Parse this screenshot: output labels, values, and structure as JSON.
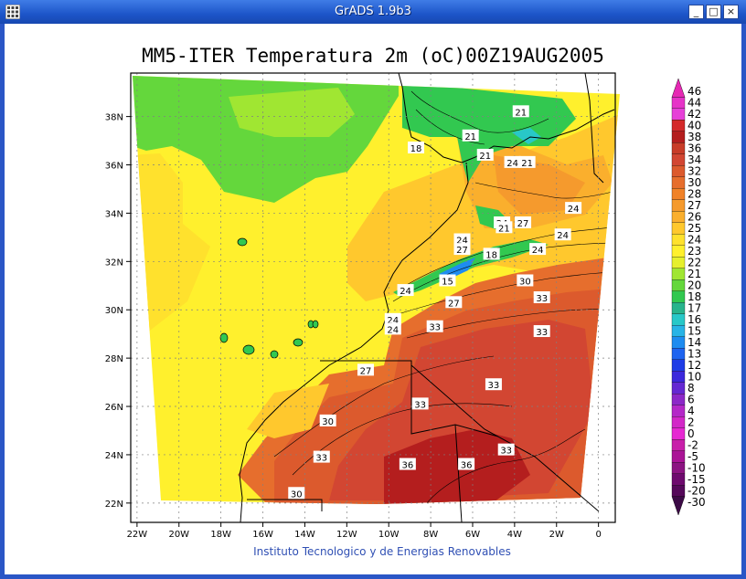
{
  "window": {
    "title": "GrADS 1.9b3",
    "minimize_label": "_",
    "maximize_label": "□",
    "close_label": "×"
  },
  "colors": {
    "titlebar": "#1d55c9",
    "accent": "#ffffff"
  },
  "plot": {
    "title": "MM5-ITER Temperatura 2m (oC)00Z19AUG2005",
    "credit": "Instituto Tecnologico y de Energias Renovables"
  },
  "chart_data": {
    "type": "heatmap",
    "title": "MM5-ITER Temperatura 2m (oC)00Z19AUG2005",
    "x_ticks": [
      "22W",
      "20W",
      "18W",
      "16W",
      "14W",
      "12W",
      "10W",
      "8W",
      "6W",
      "4W",
      "2W",
      "0"
    ],
    "x_values": [
      -22,
      -20,
      -18,
      -16,
      -14,
      -12,
      -10,
      -8,
      -6,
      -4,
      -2,
      0
    ],
    "y_ticks": [
      "22N",
      "24N",
      "26N",
      "28N",
      "30N",
      "32N",
      "34N",
      "36N",
      "38N"
    ],
    "y_values": [
      22,
      24,
      26,
      28,
      30,
      32,
      34,
      36,
      38
    ],
    "xlim": [
      -22.3,
      0.8
    ],
    "ylim": [
      21.2,
      39.8
    ],
    "grid": true,
    "colorbar_labels": [
      "46",
      "44",
      "42",
      "40",
      "38",
      "36",
      "34",
      "32",
      "30",
      "28",
      "27",
      "26",
      "25",
      "24",
      "23",
      "22",
      "21",
      "20",
      "18",
      "17",
      "16",
      "15",
      "14",
      "13",
      "12",
      "10",
      "8",
      "6",
      "4",
      "2",
      "0",
      "-2",
      "-5",
      "-10",
      "-15",
      "-20",
      "-30"
    ],
    "colorbar_colors": [
      "#e628b4",
      "#e633c8",
      "#e640d8",
      "#d42a2a",
      "#b41e1e",
      "#c83c28",
      "#d24632",
      "#dc5a2d",
      "#e66e2d",
      "#f08228",
      "#f59a2d",
      "#faaf2d",
      "#ffc82d",
      "#ffe12d",
      "#fff02d",
      "#e6f02d",
      "#a0e632",
      "#64d73c",
      "#32c850",
      "#28b48c",
      "#28c8c8",
      "#28b4e6",
      "#1e8cf0",
      "#1e64f0",
      "#1e3ce6",
      "#3c28dc",
      "#6428d2",
      "#8c28c8",
      "#b428c8",
      "#d228c8",
      "#e628d2",
      "#c81eaa",
      "#aa1496",
      "#8c1482",
      "#6e0a6e",
      "#55085a",
      "#3c0a46"
    ],
    "contour_labels": [
      {
        "text": "21",
        "lon": -6.1,
        "lat": 37.2
      },
      {
        "text": "21",
        "lon": -3.7,
        "lat": 38.2
      },
      {
        "text": "18",
        "lon": -8.7,
        "lat": 36.7
      },
      {
        "text": "21",
        "lon": -5.4,
        "lat": 36.4
      },
      {
        "text": "24",
        "lon": -4.1,
        "lat": 36.1
      },
      {
        "text": "21",
        "lon": -3.4,
        "lat": 36.1
      },
      {
        "text": "24",
        "lon": -1.2,
        "lat": 34.2
      },
      {
        "text": "24",
        "lon": -4.6,
        "lat": 33.6
      },
      {
        "text": "21",
        "lon": -4.5,
        "lat": 33.4
      },
      {
        "text": "27",
        "lon": -3.6,
        "lat": 33.6
      },
      {
        "text": "24",
        "lon": -1.7,
        "lat": 33.1
      },
      {
        "text": "24",
        "lon": -6.5,
        "lat": 32.9
      },
      {
        "text": "27",
        "lon": -6.5,
        "lat": 32.5
      },
      {
        "text": "18",
        "lon": -5.1,
        "lat": 32.3
      },
      {
        "text": "24",
        "lon": -2.9,
        "lat": 32.5
      },
      {
        "text": "15",
        "lon": -7.2,
        "lat": 31.2
      },
      {
        "text": "30",
        "lon": -3.5,
        "lat": 31.2
      },
      {
        "text": "24",
        "lon": -9.2,
        "lat": 30.8
      },
      {
        "text": "33",
        "lon": -2.7,
        "lat": 30.5
      },
      {
        "text": "27",
        "lon": -6.9,
        "lat": 30.3
      },
      {
        "text": "24",
        "lon": -9.8,
        "lat": 29.6
      },
      {
        "text": "24",
        "lon": -9.8,
        "lat": 29.2
      },
      {
        "text": "33",
        "lon": -7.8,
        "lat": 29.3
      },
      {
        "text": "33",
        "lon": -2.7,
        "lat": 29.1
      },
      {
        "text": "27",
        "lon": -11.1,
        "lat": 27.5
      },
      {
        "text": "33",
        "lon": -5.0,
        "lat": 26.9
      },
      {
        "text": "33",
        "lon": -8.5,
        "lat": 26.1
      },
      {
        "text": "30",
        "lon": -12.9,
        "lat": 25.4
      },
      {
        "text": "33",
        "lon": -4.4,
        "lat": 24.2
      },
      {
        "text": "33",
        "lon": -13.2,
        "lat": 23.9
      },
      {
        "text": "36",
        "lon": -9.1,
        "lat": 23.6
      },
      {
        "text": "36",
        "lon": -6.3,
        "lat": 23.6
      },
      {
        "text": "30",
        "lon": -14.4,
        "lat": 22.4
      }
    ]
  }
}
